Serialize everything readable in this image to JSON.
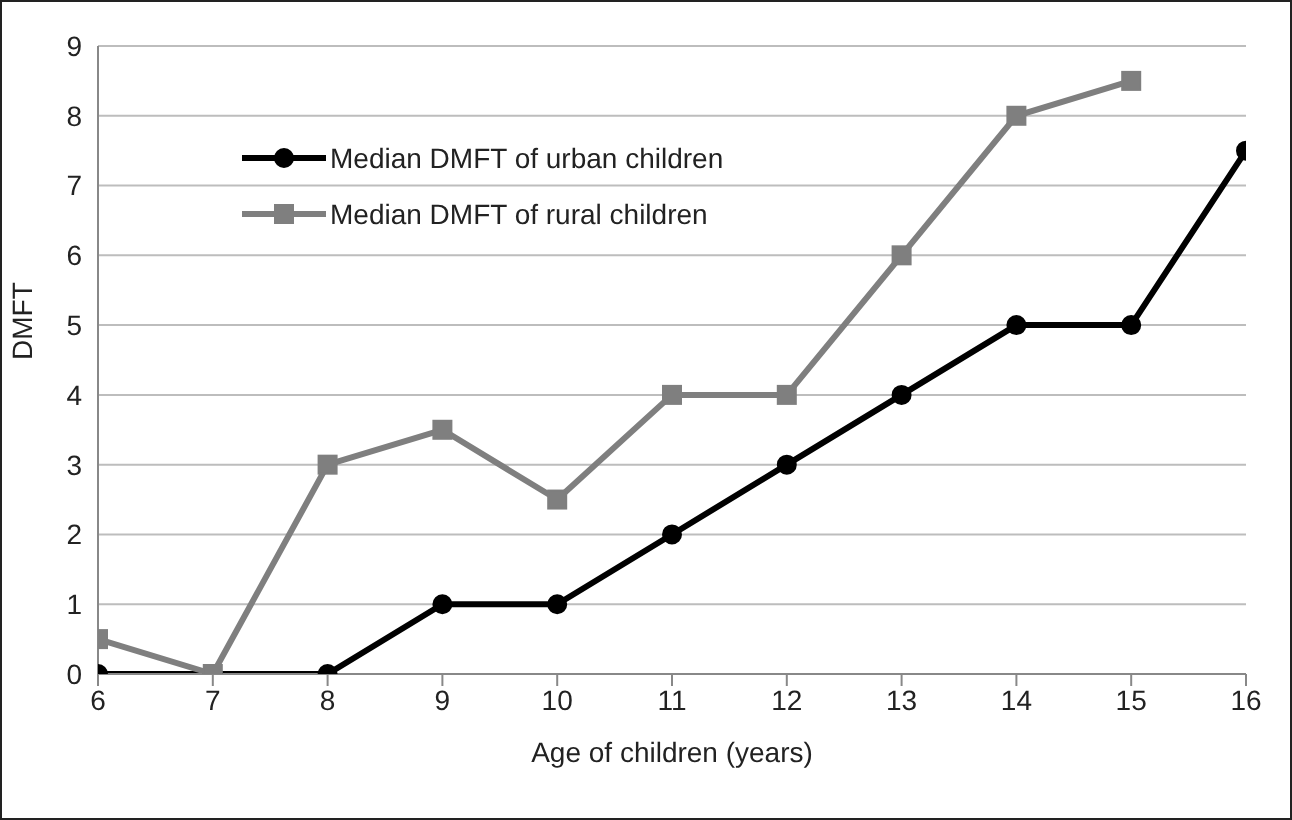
{
  "chart_data": {
    "type": "line",
    "xlabel": "Age of children (years)",
    "ylabel": "DMFT",
    "x": [
      6,
      7,
      8,
      9,
      10,
      11,
      12,
      13,
      14,
      15,
      16
    ],
    "series": [
      {
        "name": "Median DMFT of urban children",
        "color": "#000000",
        "marker": "circle",
        "values": [
          0,
          0,
          0,
          1,
          1,
          2,
          3,
          4,
          5,
          5,
          7.5
        ]
      },
      {
        "name": "Median DMFT of rural children",
        "color": "#7f7f7f",
        "marker": "square",
        "values": [
          0.5,
          0,
          3,
          3.5,
          2.5,
          4,
          4,
          6,
          8,
          8.5,
          null
        ]
      }
    ],
    "xlim": [
      6,
      16
    ],
    "xticks": [
      6,
      7,
      8,
      9,
      10,
      11,
      12,
      13,
      14,
      15,
      16
    ],
    "ylim": [
      0,
      9
    ],
    "yticks": [
      0,
      1,
      2,
      3,
      4,
      5,
      6,
      7,
      8,
      9
    ],
    "grid": "y",
    "legend": "top left",
    "line_style": "solid"
  }
}
